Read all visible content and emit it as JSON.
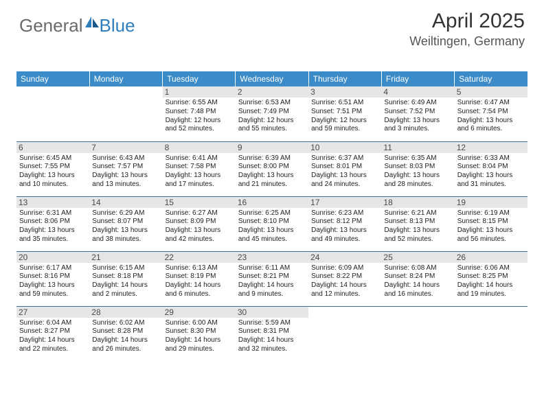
{
  "logo": {
    "text1": "General",
    "text2": "Blue"
  },
  "title": "April 2025",
  "location": "Weiltingen, Germany",
  "colors": {
    "header_bg": "#3b8bc8",
    "header_text": "#ffffff",
    "row_divider": "#3b6a95",
    "daynum_bg": "#e6e6e6",
    "body_text": "#212121",
    "title_color": "#333333",
    "location_color": "#555555",
    "logo_gray": "#6a6a6a",
    "logo_blue": "#2f7fbf"
  },
  "typography": {
    "title_fontsize": 30,
    "location_fontsize": 18,
    "header_fontsize": 12,
    "daynum_fontsize": 12,
    "info_fontsize": 10
  },
  "day_headers": [
    "Sunday",
    "Monday",
    "Tuesday",
    "Wednesday",
    "Thursday",
    "Friday",
    "Saturday"
  ],
  "grid": {
    "columns": 7,
    "rows": 5,
    "start_weekday_index": 2,
    "days_in_month": 30
  },
  "days": [
    {
      "n": 1,
      "sunrise": "6:55 AM",
      "sunset": "7:48 PM",
      "daylight": "12 hours and 52 minutes."
    },
    {
      "n": 2,
      "sunrise": "6:53 AM",
      "sunset": "7:49 PM",
      "daylight": "12 hours and 55 minutes."
    },
    {
      "n": 3,
      "sunrise": "6:51 AM",
      "sunset": "7:51 PM",
      "daylight": "12 hours and 59 minutes."
    },
    {
      "n": 4,
      "sunrise": "6:49 AM",
      "sunset": "7:52 PM",
      "daylight": "13 hours and 3 minutes."
    },
    {
      "n": 5,
      "sunrise": "6:47 AM",
      "sunset": "7:54 PM",
      "daylight": "13 hours and 6 minutes."
    },
    {
      "n": 6,
      "sunrise": "6:45 AM",
      "sunset": "7:55 PM",
      "daylight": "13 hours and 10 minutes."
    },
    {
      "n": 7,
      "sunrise": "6:43 AM",
      "sunset": "7:57 PM",
      "daylight": "13 hours and 13 minutes."
    },
    {
      "n": 8,
      "sunrise": "6:41 AM",
      "sunset": "7:58 PM",
      "daylight": "13 hours and 17 minutes."
    },
    {
      "n": 9,
      "sunrise": "6:39 AM",
      "sunset": "8:00 PM",
      "daylight": "13 hours and 21 minutes."
    },
    {
      "n": 10,
      "sunrise": "6:37 AM",
      "sunset": "8:01 PM",
      "daylight": "13 hours and 24 minutes."
    },
    {
      "n": 11,
      "sunrise": "6:35 AM",
      "sunset": "8:03 PM",
      "daylight": "13 hours and 28 minutes."
    },
    {
      "n": 12,
      "sunrise": "6:33 AM",
      "sunset": "8:04 PM",
      "daylight": "13 hours and 31 minutes."
    },
    {
      "n": 13,
      "sunrise": "6:31 AM",
      "sunset": "8:06 PM",
      "daylight": "13 hours and 35 minutes."
    },
    {
      "n": 14,
      "sunrise": "6:29 AM",
      "sunset": "8:07 PM",
      "daylight": "13 hours and 38 minutes."
    },
    {
      "n": 15,
      "sunrise": "6:27 AM",
      "sunset": "8:09 PM",
      "daylight": "13 hours and 42 minutes."
    },
    {
      "n": 16,
      "sunrise": "6:25 AM",
      "sunset": "8:10 PM",
      "daylight": "13 hours and 45 minutes."
    },
    {
      "n": 17,
      "sunrise": "6:23 AM",
      "sunset": "8:12 PM",
      "daylight": "13 hours and 49 minutes."
    },
    {
      "n": 18,
      "sunrise": "6:21 AM",
      "sunset": "8:13 PM",
      "daylight": "13 hours and 52 minutes."
    },
    {
      "n": 19,
      "sunrise": "6:19 AM",
      "sunset": "8:15 PM",
      "daylight": "13 hours and 56 minutes."
    },
    {
      "n": 20,
      "sunrise": "6:17 AM",
      "sunset": "8:16 PM",
      "daylight": "13 hours and 59 minutes."
    },
    {
      "n": 21,
      "sunrise": "6:15 AM",
      "sunset": "8:18 PM",
      "daylight": "14 hours and 2 minutes."
    },
    {
      "n": 22,
      "sunrise": "6:13 AM",
      "sunset": "8:19 PM",
      "daylight": "14 hours and 6 minutes."
    },
    {
      "n": 23,
      "sunrise": "6:11 AM",
      "sunset": "8:21 PM",
      "daylight": "14 hours and 9 minutes."
    },
    {
      "n": 24,
      "sunrise": "6:09 AM",
      "sunset": "8:22 PM",
      "daylight": "14 hours and 12 minutes."
    },
    {
      "n": 25,
      "sunrise": "6:08 AM",
      "sunset": "8:24 PM",
      "daylight": "14 hours and 16 minutes."
    },
    {
      "n": 26,
      "sunrise": "6:06 AM",
      "sunset": "8:25 PM",
      "daylight": "14 hours and 19 minutes."
    },
    {
      "n": 27,
      "sunrise": "6:04 AM",
      "sunset": "8:27 PM",
      "daylight": "14 hours and 22 minutes."
    },
    {
      "n": 28,
      "sunrise": "6:02 AM",
      "sunset": "8:28 PM",
      "daylight": "14 hours and 26 minutes."
    },
    {
      "n": 29,
      "sunrise": "6:00 AM",
      "sunset": "8:30 PM",
      "daylight": "14 hours and 29 minutes."
    },
    {
      "n": 30,
      "sunrise": "5:59 AM",
      "sunset": "8:31 PM",
      "daylight": "14 hours and 32 minutes."
    }
  ],
  "labels": {
    "sunrise": "Sunrise:",
    "sunset": "Sunset:",
    "daylight": "Daylight:"
  }
}
